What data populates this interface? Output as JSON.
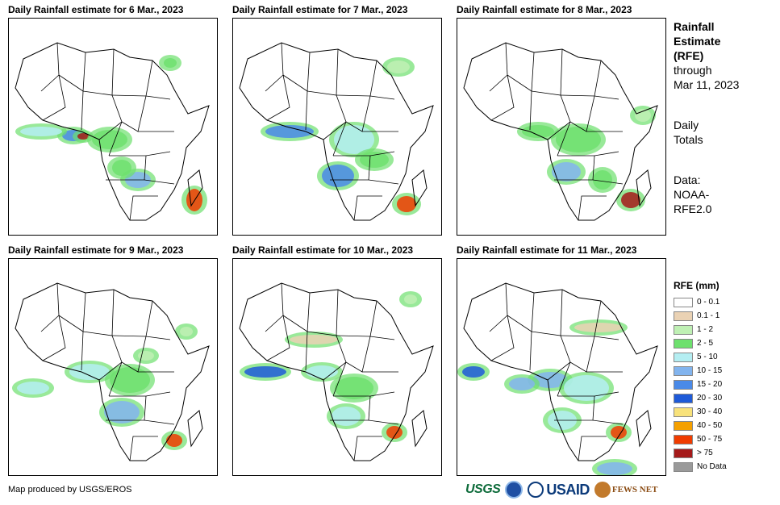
{
  "panels": [
    {
      "title": "Daily Rainfall estimate for 6 Mar., 2023"
    },
    {
      "title": "Daily Rainfall estimate for 7 Mar., 2023"
    },
    {
      "title": "Daily Rainfall estimate for 8 Mar., 2023"
    },
    {
      "title": "Daily Rainfall estimate for 9 Mar., 2023"
    },
    {
      "title": "Daily Rainfall estimate for 10 Mar., 2023"
    },
    {
      "title": "Daily Rainfall estimate for 11 Mar., 2023"
    }
  ],
  "sidebar": {
    "title1": "Rainfall",
    "title2": "Estimate",
    "title3": "(RFE)",
    "through": "through",
    "date": "Mar 11, 2023",
    "daily": "Daily",
    "totals": "Totals",
    "data_label": "Data:",
    "data_source1": "NOAA-",
    "data_source2": "RFE2.0"
  },
  "legend": {
    "title": "RFE (mm)",
    "items": [
      {
        "label": "0 - 0.1",
        "color": "#ffffff"
      },
      {
        "label": "0.1 - 1",
        "color": "#ead2b4"
      },
      {
        "label": "1 - 2",
        "color": "#bff0b4"
      },
      {
        "label": "2 - 5",
        "color": "#6ee06e"
      },
      {
        "label": "5 - 10",
        "color": "#b4eef2"
      },
      {
        "label": "10 - 15",
        "color": "#82b4ee"
      },
      {
        "label": "15 - 20",
        "color": "#4a8ae8"
      },
      {
        "label": "20 - 30",
        "color": "#1e5ad8"
      },
      {
        "label": "30 - 40",
        "color": "#f8e27a"
      },
      {
        "label": "40 - 50",
        "color": "#f5a000"
      },
      {
        "label": "50 - 75",
        "color": "#f03c00"
      },
      {
        "label": "> 75",
        "color": "#a51a1a"
      },
      {
        "label": "No Data",
        "color": "#9a9a9a"
      }
    ]
  },
  "footer": {
    "credit": "Map produced by USGS/EROS",
    "logo_usgs": "USGS",
    "logo_usaid": "USAID",
    "logo_fews": "FEWS NET"
  }
}
